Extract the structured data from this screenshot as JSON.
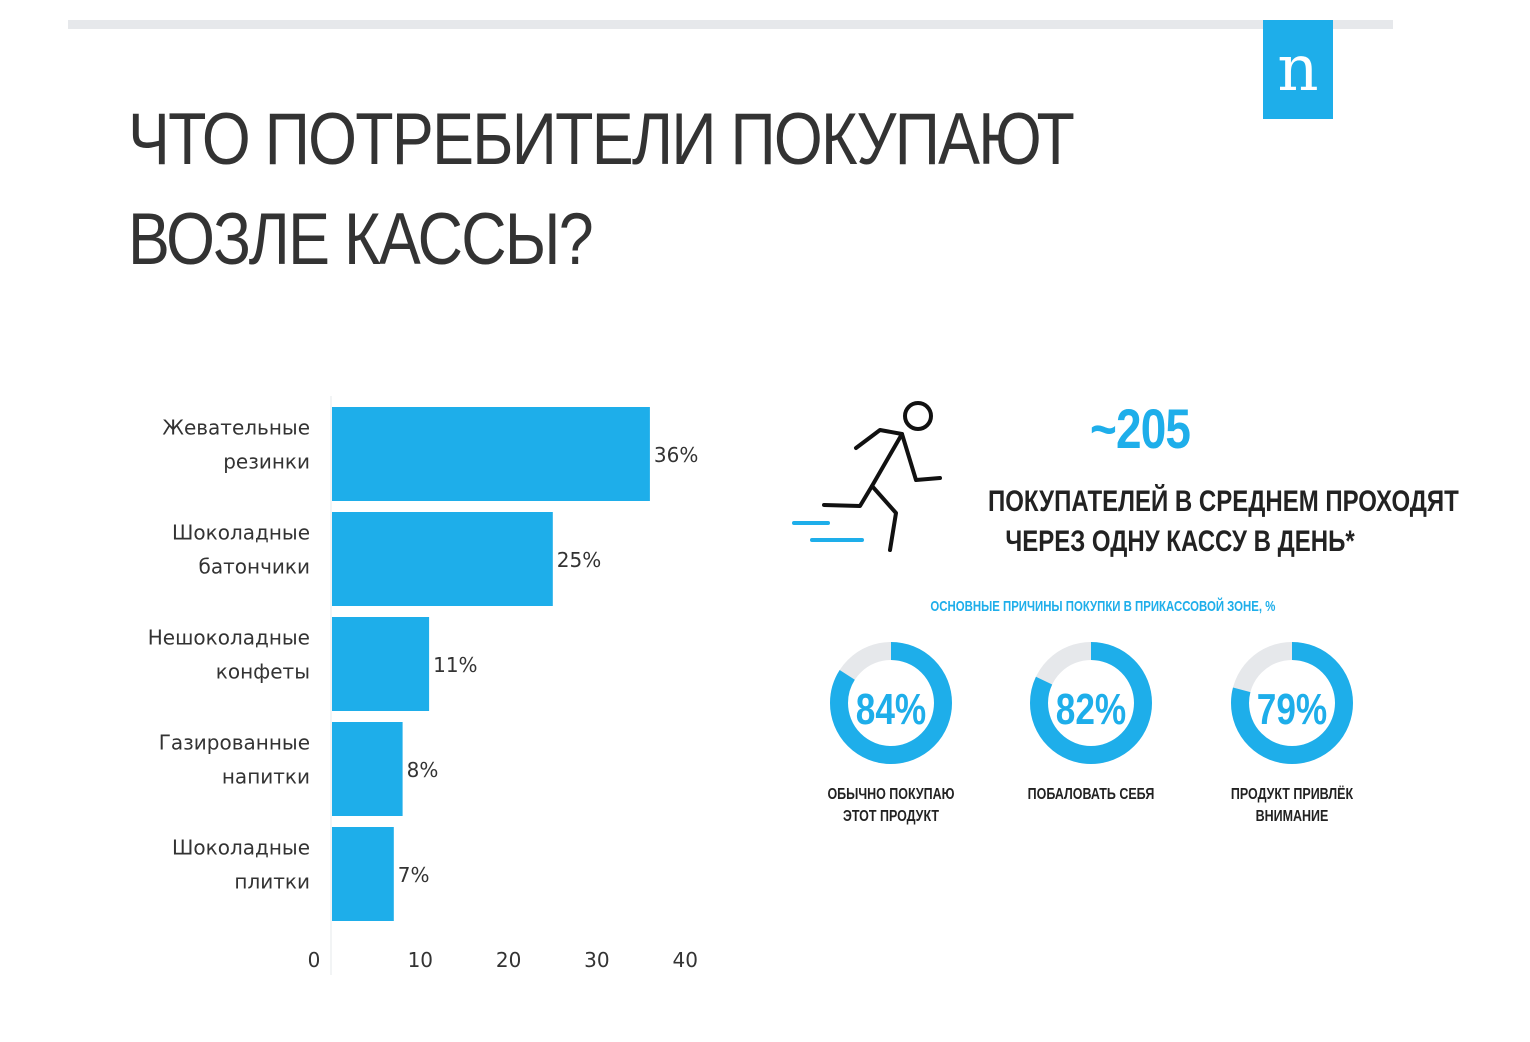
{
  "title": [
    "ЧТО ПОТРЕБИТЕЛИ ПОКУПАЮТ",
    "ВОЗЛЕ КАССЫ?"
  ],
  "logo_letter": "n",
  "colors": {
    "accent": "#1eaeea",
    "ring_track": "#e6e8eb",
    "text": "#333333"
  },
  "chart_data": {
    "type": "bar",
    "orientation": "horizontal",
    "categories": [
      [
        "Жевательные",
        "резинки"
      ],
      [
        "Шоколадные",
        "батончики"
      ],
      [
        "Нешоколадные",
        "конфеты"
      ],
      [
        "Газированные",
        "напитки"
      ],
      [
        "Шоколадные",
        "плитки"
      ]
    ],
    "values": [
      36,
      25,
      11,
      8,
      7
    ],
    "value_labels": [
      "36%",
      "25%",
      "11%",
      "8%",
      "7%"
    ],
    "xticks": [
      0,
      10,
      20,
      30,
      40
    ],
    "xlim": [
      0,
      40
    ],
    "grid": false
  },
  "infographic": {
    "count": "~205",
    "count_caption": [
      "ПОКУПАТЕЛЕЙ В СРЕДНЕМ ПРОХОДЯТ",
      "ЧЕРЕЗ ОДНУ КАССУ В ДЕНЬ*"
    ],
    "icon": "running-person-icon",
    "reasons_title": "ОСНОВНЫЕ ПРИЧИНЫ ПОКУПКИ В ПРИКАССОВОЙ ЗОНЕ, %",
    "reasons": [
      {
        "value": 84,
        "label": "84%",
        "caption": [
          "ОБЫЧНО ПОКУПАЮ",
          "ЭТОТ ПРОДУКТ"
        ]
      },
      {
        "value": 82,
        "label": "82%",
        "caption": [
          "ПОБАЛОВАТЬ СЕБЯ"
        ]
      },
      {
        "value": 79,
        "label": "79%",
        "caption": [
          "ПРОДУКТ ПРИВЛЁК",
          "ВНИМАНИЕ"
        ]
      }
    ]
  }
}
